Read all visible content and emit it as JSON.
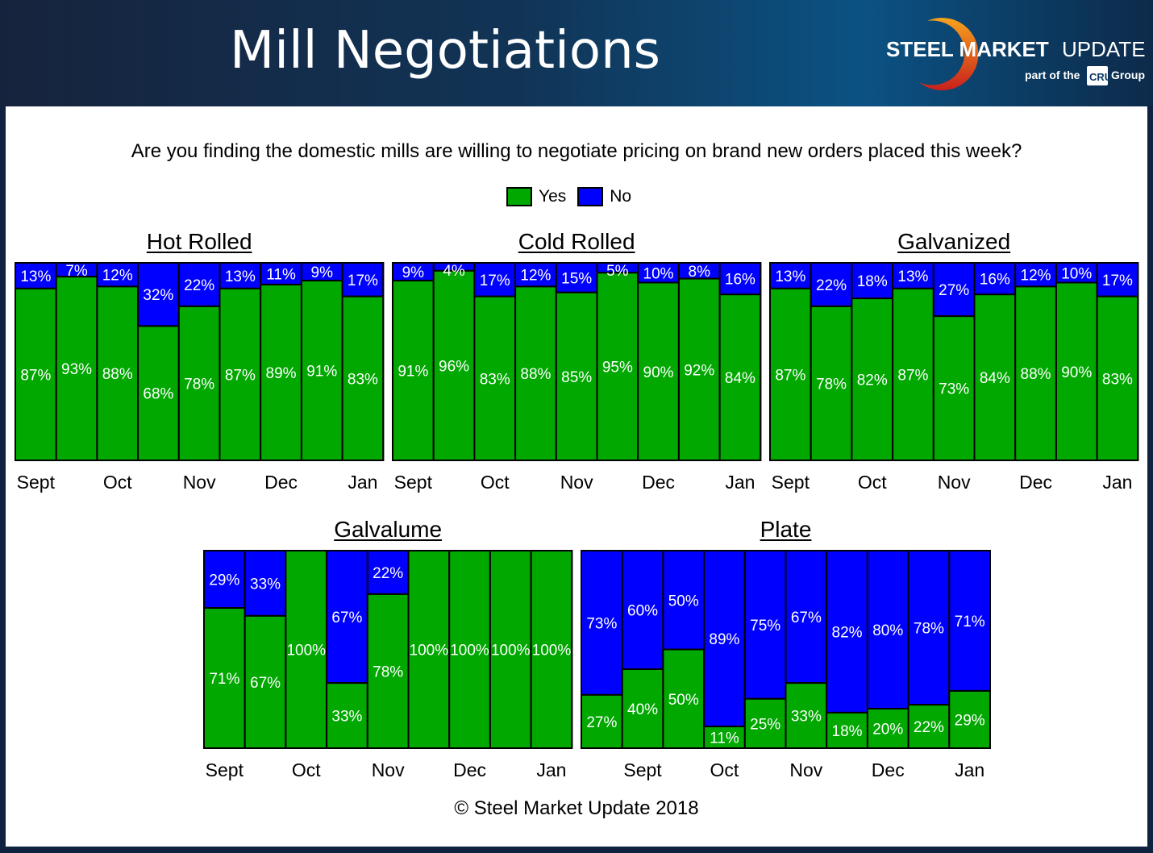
{
  "header": {
    "title": "Mill Negotiations",
    "logo_text": "STEEL MARKET UPDATE",
    "logo_sub": "part of the CRU Group"
  },
  "question": "Are you finding the domestic mills are willing to negotiate pricing on brand new orders placed this week?",
  "legend": [
    {
      "label": "Yes",
      "color": "#00a800"
    },
    {
      "label": "No",
      "color": "#0000ff"
    }
  ],
  "footer": "© Steel Market Update 2018",
  "chart_data": [
    {
      "type": "bar",
      "stacked": true,
      "title": "Hot Rolled",
      "series": [
        {
          "name": "Yes",
          "values": [
            87,
            93,
            88,
            68,
            78,
            87,
            89,
            91,
            83
          ]
        },
        {
          "name": "No",
          "values": [
            13,
            7,
            12,
            32,
            22,
            13,
            11,
            9,
            17
          ]
        }
      ],
      "tick_labels": [
        {
          "label": "Sept",
          "bar": 0
        },
        {
          "label": "Oct",
          "bar": 2
        },
        {
          "label": "Nov",
          "bar": 4
        },
        {
          "label": "Dec",
          "bar": 6
        },
        {
          "label": "Jan",
          "bar": 8
        }
      ],
      "ylim": [
        0,
        100
      ]
    },
    {
      "type": "bar",
      "stacked": true,
      "title": "Cold Rolled",
      "series": [
        {
          "name": "Yes",
          "values": [
            91,
            96,
            83,
            88,
            85,
            95,
            90,
            92,
            84
          ]
        },
        {
          "name": "No",
          "values": [
            9,
            4,
            17,
            12,
            15,
            5,
            10,
            8,
            16
          ]
        }
      ],
      "tick_labels": [
        {
          "label": "Sept",
          "bar": 0
        },
        {
          "label": "Oct",
          "bar": 2
        },
        {
          "label": "Nov",
          "bar": 4
        },
        {
          "label": "Dec",
          "bar": 6
        },
        {
          "label": "Jan",
          "bar": 8
        }
      ],
      "ylim": [
        0,
        100
      ]
    },
    {
      "type": "bar",
      "stacked": true,
      "title": "Galvanized",
      "series": [
        {
          "name": "Yes",
          "values": [
            87,
            78,
            82,
            87,
            73,
            84,
            88,
            90,
            83
          ]
        },
        {
          "name": "No",
          "values": [
            13,
            22,
            18,
            13,
            27,
            16,
            12,
            10,
            17
          ]
        }
      ],
      "tick_labels": [
        {
          "label": "Sept",
          "bar": 0
        },
        {
          "label": "Oct",
          "bar": 2
        },
        {
          "label": "Nov",
          "bar": 4
        },
        {
          "label": "Dec",
          "bar": 6
        },
        {
          "label": "Jan",
          "bar": 8
        }
      ],
      "ylim": [
        0,
        100
      ]
    },
    {
      "type": "bar",
      "stacked": true,
      "title": "Galvalume",
      "series": [
        {
          "name": "Yes",
          "values": [
            71,
            67,
            100,
            33,
            78,
            100,
            100,
            100,
            100
          ]
        },
        {
          "name": "No",
          "values": [
            29,
            33,
            0,
            67,
            22,
            0,
            0,
            0,
            0
          ]
        }
      ],
      "tick_labels": [
        {
          "label": "Sept",
          "bar": 0
        },
        {
          "label": "Oct",
          "bar": 2
        },
        {
          "label": "Nov",
          "bar": 4
        },
        {
          "label": "Dec",
          "bar": 6
        },
        {
          "label": "Jan",
          "bar": 8
        }
      ],
      "ylim": [
        0,
        100
      ]
    },
    {
      "type": "bar",
      "stacked": true,
      "title": "Plate",
      "series": [
        {
          "name": "Yes",
          "values": [
            27,
            40,
            50,
            11,
            25,
            33,
            18,
            20,
            22,
            29
          ]
        },
        {
          "name": "No",
          "values": [
            73,
            60,
            50,
            89,
            75,
            67,
            82,
            80,
            78,
            71
          ]
        }
      ],
      "tick_labels": [
        {
          "label": "Sept",
          "bar": 1
        },
        {
          "label": "Oct",
          "bar": 3
        },
        {
          "label": "Nov",
          "bar": 5
        },
        {
          "label": "Dec",
          "bar": 7
        },
        {
          "label": "Jan",
          "bar": 9
        }
      ],
      "ylim": [
        0,
        100
      ]
    }
  ]
}
